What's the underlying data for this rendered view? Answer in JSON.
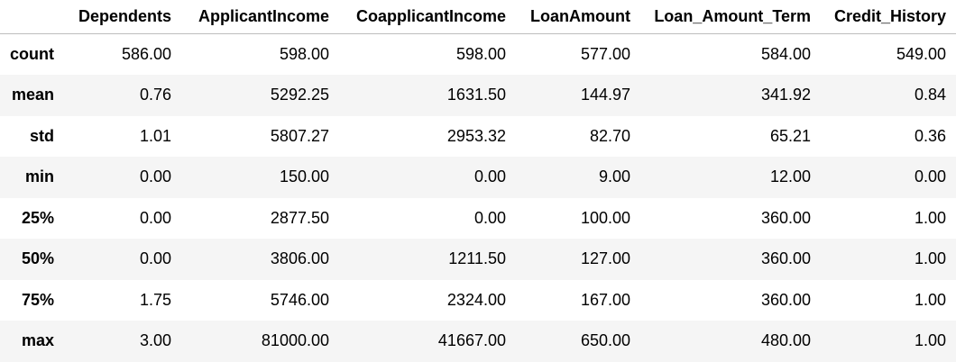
{
  "table": {
    "index_header": "",
    "columns": [
      "Dependents",
      "ApplicantIncome",
      "CoapplicantIncome",
      "LoanAmount",
      "Loan_Amount_Term",
      "Credit_History"
    ],
    "rows": [
      {
        "label": "count",
        "values": [
          "586.00",
          "598.00",
          "598.00",
          "577.00",
          "584.00",
          "549.00"
        ]
      },
      {
        "label": "mean",
        "values": [
          "0.76",
          "5292.25",
          "1631.50",
          "144.97",
          "341.92",
          "0.84"
        ]
      },
      {
        "label": "std",
        "values": [
          "1.01",
          "5807.27",
          "2953.32",
          "82.70",
          "65.21",
          "0.36"
        ]
      },
      {
        "label": "min",
        "values": [
          "0.00",
          "150.00",
          "0.00",
          "9.00",
          "12.00",
          "0.00"
        ]
      },
      {
        "label": "25%",
        "values": [
          "0.00",
          "2877.50",
          "0.00",
          "100.00",
          "360.00",
          "1.00"
        ]
      },
      {
        "label": "50%",
        "values": [
          "0.00",
          "3806.00",
          "1211.50",
          "127.00",
          "360.00",
          "1.00"
        ]
      },
      {
        "label": "75%",
        "values": [
          "1.75",
          "5746.00",
          "2324.00",
          "167.00",
          "360.00",
          "1.00"
        ]
      },
      {
        "label": "max",
        "values": [
          "3.00",
          "81000.00",
          "41667.00",
          "650.00",
          "480.00",
          "1.00"
        ]
      }
    ]
  }
}
